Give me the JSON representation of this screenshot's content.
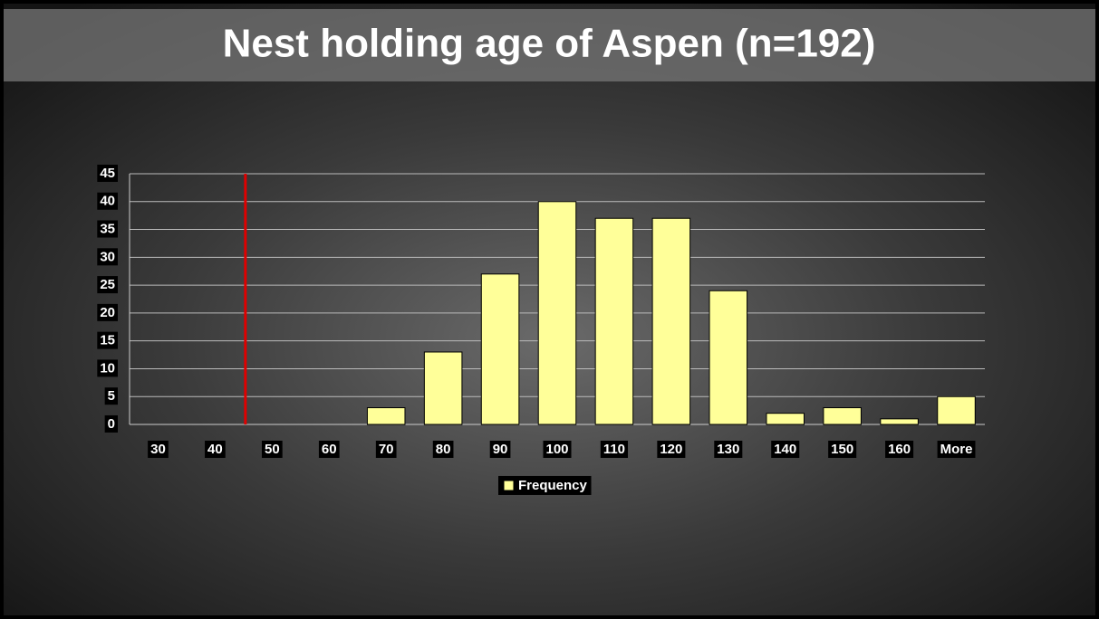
{
  "chart_data": {
    "type": "bar",
    "title": "Nest holding age of Aspen (n=192)",
    "categories": [
      "30",
      "40",
      "50",
      "60",
      "70",
      "80",
      "90",
      "100",
      "110",
      "120",
      "130",
      "140",
      "150",
      "160",
      "More"
    ],
    "series": [
      {
        "name": "Frequency",
        "color": "#ffff99",
        "values": [
          0,
          0,
          0,
          0,
          3,
          13,
          27,
          40,
          37,
          37,
          24,
          2,
          3,
          1,
          5
        ]
      }
    ],
    "ylim": [
      0,
      45
    ],
    "yticks": [
      0,
      5,
      10,
      15,
      20,
      25,
      30,
      35,
      40,
      45
    ],
    "grid": true,
    "legend": "bottom"
  }
}
